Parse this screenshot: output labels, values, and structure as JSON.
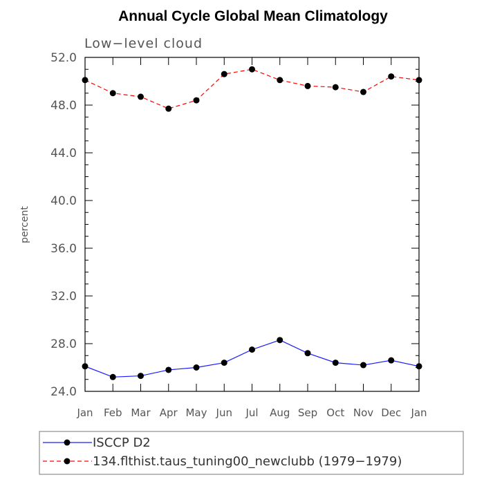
{
  "chart_data": {
    "type": "line",
    "title": "Annual Cycle Global Mean Climatology",
    "subtitle": "Low−level cloud",
    "ylabel": "percent",
    "xlabel": "",
    "categories": [
      "Jan",
      "Feb",
      "Mar",
      "Apr",
      "May",
      "Jun",
      "Jul",
      "Aug",
      "Sep",
      "Oct",
      "Nov",
      "Dec",
      "Jan"
    ],
    "ylim": [
      24.0,
      52.0
    ],
    "yticks": [
      24.0,
      28.0,
      32.0,
      36.0,
      40.0,
      44.0,
      48.0,
      52.0
    ],
    "ytick_labels": [
      "24.0",
      "28.0",
      "32.0",
      "36.0",
      "40.0",
      "44.0",
      "48.0",
      "52.0"
    ],
    "y_minor_step": 1.0,
    "grid": false,
    "legend_position": "bottom",
    "series": [
      {
        "name": "ISCCP D2",
        "color": "#1a1aff",
        "dash": "solid",
        "marker": "circle",
        "values": [
          26.1,
          25.2,
          25.3,
          25.8,
          26.0,
          26.4,
          27.5,
          28.3,
          27.2,
          26.4,
          26.2,
          26.6,
          26.1
        ]
      },
      {
        "name": "134.flthist.taus_tuning00_newclubb (1979−1979)",
        "color": "#ff0000",
        "dash": "dashed",
        "marker": "circle",
        "values": [
          50.1,
          49.0,
          48.7,
          47.7,
          48.4,
          50.6,
          51.0,
          50.1,
          49.6,
          49.5,
          49.1,
          50.4,
          50.1
        ]
      }
    ]
  }
}
